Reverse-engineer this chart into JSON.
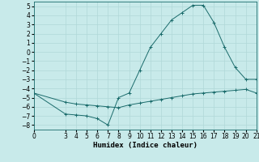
{
  "xlabel": "Humidex (Indice chaleur)",
  "bg_color": "#c8eaea",
  "grid_color": "#b0d8d8",
  "line_color": "#1a6b6b",
  "xlim": [
    0,
    21
  ],
  "ylim": [
    -8.5,
    5.5
  ],
  "yticks": [
    5,
    4,
    3,
    2,
    1,
    0,
    -1,
    -2,
    -3,
    -4,
    -5,
    -6,
    -7,
    -8
  ],
  "xticks": [
    0,
    3,
    4,
    5,
    6,
    7,
    8,
    9,
    10,
    11,
    12,
    13,
    14,
    15,
    16,
    17,
    18,
    19,
    20,
    21
  ],
  "line1_x": [
    0,
    3,
    4,
    5,
    6,
    7,
    8,
    9,
    10,
    11,
    12,
    13,
    14,
    15,
    16,
    17,
    18,
    19,
    20,
    21
  ],
  "line1_y": [
    -4.5,
    -6.8,
    -6.9,
    -7.0,
    -7.3,
    -8.0,
    -5.0,
    -4.5,
    -2.0,
    0.5,
    2.0,
    3.5,
    4.3,
    5.1,
    5.1,
    3.2,
    0.5,
    -1.7,
    -3.0,
    -3.0
  ],
  "line2_x": [
    0,
    3,
    4,
    5,
    6,
    7,
    8,
    9,
    10,
    11,
    12,
    13,
    14,
    15,
    16,
    17,
    18,
    19,
    20,
    21
  ],
  "line2_y": [
    -4.5,
    -5.5,
    -5.7,
    -5.8,
    -5.9,
    -6.0,
    -6.1,
    -5.8,
    -5.6,
    -5.4,
    -5.2,
    -5.0,
    -4.8,
    -4.6,
    -4.5,
    -4.4,
    -4.3,
    -4.2,
    -4.1,
    -4.5
  ],
  "tick_fontsize": 5.5,
  "xlabel_fontsize": 6.5
}
